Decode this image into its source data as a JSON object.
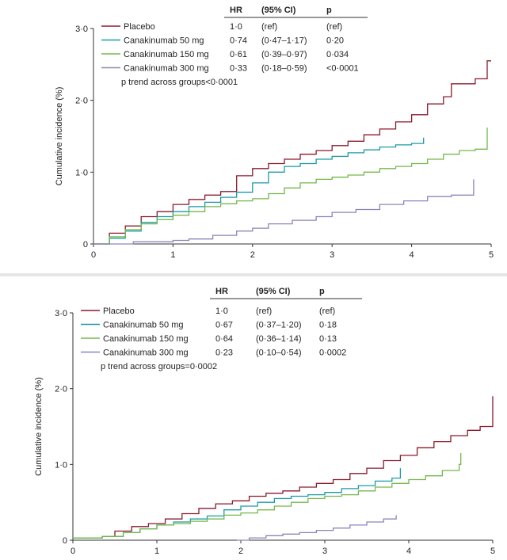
{
  "colors": {
    "placebo": "#8b1a2b",
    "cana50": "#1a9aa8",
    "cana150": "#74b84a",
    "cana300": "#8a86bd"
  },
  "chart_data": [
    {
      "type": "line",
      "title": "",
      "xlabel": "",
      "ylabel": "Cumulative incidence (%)",
      "xlim": [
        0,
        5
      ],
      "ylim": [
        0,
        3
      ],
      "xticks": [
        "0",
        "1",
        "2",
        "3",
        "4",
        "5"
      ],
      "yticks": [
        "0",
        "1·0",
        "2·0",
        "3·0"
      ],
      "legend": {
        "placement": "top-left",
        "headers": [
          "HR",
          "(95% CI)",
          "p"
        ],
        "rows": [
          {
            "name": "Placebo",
            "hr": "1·0",
            "ci": "(ref)",
            "p": "(ref)",
            "color_key": "placebo"
          },
          {
            "name": "Canakinumab 50 mg",
            "hr": "0·74",
            "ci": "(0·47–1·17)",
            "p": "0·20",
            "color_key": "cana50"
          },
          {
            "name": "Canakinumab 150 mg",
            "hr": "0·61",
            "ci": "(0·39–0·97)",
            "p": "0·034",
            "color_key": "cana150"
          },
          {
            "name": "Canakinumab 300 mg",
            "hr": "0·33",
            "ci": "(0·18–0·59)",
            "p": "<0·0001",
            "color_key": "cana300"
          }
        ],
        "trend": "p trend across groups<0·0001"
      },
      "series": [
        {
          "name": "Placebo",
          "color_key": "placebo",
          "x": [
            0,
            0.2,
            0.4,
            0.6,
            0.8,
            1.0,
            1.2,
            1.4,
            1.6,
            1.8,
            2.0,
            2.2,
            2.4,
            2.6,
            2.8,
            3.0,
            3.2,
            3.4,
            3.6,
            3.8,
            4.0,
            4.2,
            4.4,
            4.5,
            4.8,
            4.95,
            5.0
          ],
          "y": [
            0,
            0.15,
            0.25,
            0.38,
            0.45,
            0.55,
            0.62,
            0.68,
            0.73,
            0.95,
            1.05,
            1.12,
            1.18,
            1.25,
            1.3,
            1.37,
            1.43,
            1.52,
            1.6,
            1.7,
            1.8,
            1.95,
            2.05,
            2.23,
            2.3,
            2.55,
            2.55
          ]
        },
        {
          "name": "Canakinumab 50 mg",
          "color_key": "cana50",
          "x": [
            0,
            0.2,
            0.4,
            0.6,
            0.8,
            1.0,
            1.2,
            1.4,
            1.6,
            1.8,
            2.0,
            2.2,
            2.4,
            2.6,
            2.8,
            3.0,
            3.2,
            3.4,
            3.6,
            3.8,
            4.0,
            4.15
          ],
          "y": [
            0,
            0.08,
            0.18,
            0.3,
            0.38,
            0.45,
            0.52,
            0.58,
            0.65,
            0.72,
            0.85,
            1.0,
            1.08,
            1.12,
            1.18,
            1.22,
            1.27,
            1.31,
            1.35,
            1.38,
            1.4,
            1.48
          ]
        },
        {
          "name": "Canakinumab 150 mg",
          "color_key": "cana150",
          "x": [
            0,
            0.2,
            0.4,
            0.6,
            0.8,
            1.0,
            1.2,
            1.4,
            1.6,
            1.8,
            2.0,
            2.2,
            2.4,
            2.6,
            2.8,
            3.0,
            3.2,
            3.4,
            3.6,
            3.8,
            4.0,
            4.2,
            4.4,
            4.6,
            4.8,
            4.95
          ],
          "y": [
            0,
            0.1,
            0.2,
            0.28,
            0.34,
            0.4,
            0.45,
            0.52,
            0.56,
            0.6,
            0.63,
            0.7,
            0.78,
            0.85,
            0.9,
            0.93,
            0.96,
            1.0,
            1.05,
            1.08,
            1.12,
            1.18,
            1.25,
            1.3,
            1.32,
            1.62
          ]
        },
        {
          "name": "Canakinumab 300 mg",
          "color_key": "cana300",
          "x": [
            0,
            0.5,
            1.0,
            1.2,
            1.5,
            1.8,
            2.0,
            2.2,
            2.5,
            2.8,
            3.0,
            3.3,
            3.6,
            3.9,
            4.2,
            4.5,
            4.75,
            4.78
          ],
          "y": [
            0,
            0.03,
            0.05,
            0.07,
            0.12,
            0.18,
            0.22,
            0.28,
            0.33,
            0.38,
            0.44,
            0.48,
            0.55,
            0.6,
            0.66,
            0.68,
            0.68,
            0.9
          ]
        }
      ]
    },
    {
      "type": "line",
      "title": "",
      "xlabel": "",
      "ylabel": "Cumulative incidence (%)",
      "xlim": [
        0,
        5
      ],
      "ylim": [
        0,
        3
      ],
      "xticks": [
        "0",
        "1",
        "2",
        "3",
        "4",
        "5"
      ],
      "yticks": [
        "0",
        "1·0",
        "2·0",
        "3·0"
      ],
      "legend": {
        "placement": "top-left",
        "headers": [
          "HR",
          "(95% CI)",
          "p"
        ],
        "rows": [
          {
            "name": "Placebo",
            "hr": "1·0",
            "ci": "(ref)",
            "p": "(ref)",
            "color_key": "placebo"
          },
          {
            "name": "Canakinumab 50 mg",
            "hr": "0·67",
            "ci": "(0·37–1·20)",
            "p": "0·18",
            "color_key": "cana50"
          },
          {
            "name": "Canakinumab 150 mg",
            "hr": "0·64",
            "ci": "(0·36–1·14)",
            "p": "0·13",
            "color_key": "cana150"
          },
          {
            "name": "Canakinumab 300 mg",
            "hr": "0·23",
            "ci": "(0·10–0·54)",
            "p": "0·0002",
            "color_key": "cana300"
          }
        ],
        "trend": "p trend across groups=0·0002"
      },
      "series": [
        {
          "name": "Placebo",
          "color_key": "placebo",
          "x": [
            0,
            0.35,
            0.5,
            0.7,
            0.9,
            1.1,
            1.3,
            1.5,
            1.7,
            1.9,
            2.1,
            2.3,
            2.5,
            2.7,
            2.9,
            3.1,
            3.3,
            3.5,
            3.7,
            3.9,
            4.1,
            4.3,
            4.5,
            4.7,
            4.85,
            5.0
          ],
          "y": [
            0.03,
            0.05,
            0.12,
            0.18,
            0.22,
            0.28,
            0.35,
            0.42,
            0.48,
            0.52,
            0.58,
            0.62,
            0.65,
            0.7,
            0.75,
            0.8,
            0.88,
            0.95,
            1.05,
            1.12,
            1.22,
            1.3,
            1.38,
            1.45,
            1.5,
            1.9
          ]
        },
        {
          "name": "Canakinumab 50 mg",
          "color_key": "cana50",
          "x": [
            0,
            0.35,
            0.6,
            0.8,
            1.0,
            1.2,
            1.4,
            1.6,
            1.8,
            2.0,
            2.2,
            2.4,
            2.6,
            2.8,
            3.0,
            3.2,
            3.4,
            3.6,
            3.8,
            3.9
          ],
          "y": [
            0.03,
            0.05,
            0.1,
            0.15,
            0.2,
            0.24,
            0.28,
            0.32,
            0.4,
            0.45,
            0.5,
            0.55,
            0.58,
            0.6,
            0.63,
            0.68,
            0.72,
            0.78,
            0.82,
            0.95
          ]
        },
        {
          "name": "Canakinumab 150 mg",
          "color_key": "cana150",
          "x": [
            0,
            0.35,
            0.6,
            0.8,
            1.0,
            1.2,
            1.4,
            1.6,
            1.8,
            2.0,
            2.2,
            2.4,
            2.6,
            2.8,
            3.0,
            3.2,
            3.4,
            3.6,
            3.8,
            4.0,
            4.2,
            4.4,
            4.6,
            4.62
          ],
          "y": [
            0.03,
            0.05,
            0.1,
            0.15,
            0.2,
            0.22,
            0.25,
            0.28,
            0.33,
            0.36,
            0.4,
            0.45,
            0.5,
            0.55,
            0.58,
            0.6,
            0.65,
            0.7,
            0.75,
            0.8,
            0.85,
            0.92,
            1.0,
            1.15
          ]
        },
        {
          "name": "Canakinumab 300 mg",
          "color_key": "cana300",
          "x": [
            1.95,
            2.1,
            2.3,
            2.5,
            2.7,
            2.9,
            3.1,
            3.3,
            3.5,
            3.7,
            3.85
          ],
          "y": [
            0,
            0.03,
            0.06,
            0.08,
            0.1,
            0.13,
            0.16,
            0.2,
            0.24,
            0.28,
            0.33
          ]
        }
      ]
    }
  ]
}
